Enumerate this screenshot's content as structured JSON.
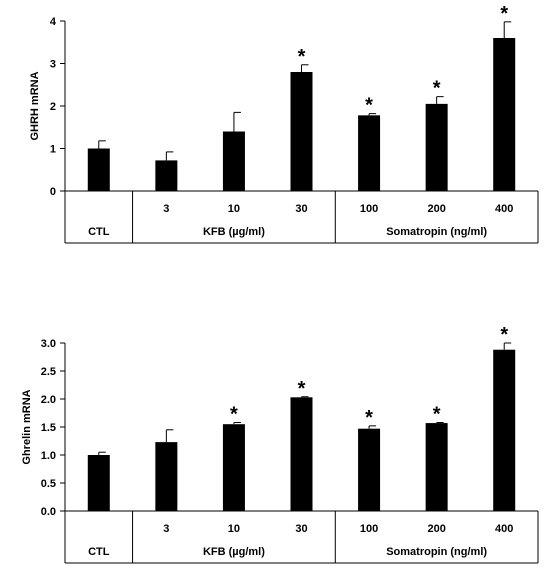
{
  "chart_data": [
    {
      "type": "bar",
      "ylabel": "GHRH mRNA",
      "ylim": [
        0,
        4
      ],
      "yticks": [
        0,
        1,
        2,
        3,
        4
      ],
      "ytick_labels": [
        "0",
        "1",
        "2",
        "3",
        "4"
      ],
      "categories": [
        "",
        "3",
        "10",
        "30",
        "100",
        "200",
        "400"
      ],
      "values": [
        1.0,
        0.72,
        1.4,
        2.8,
        1.78,
        2.05,
        3.6
      ],
      "errors": [
        0.18,
        0.2,
        0.45,
        0.17,
        0.04,
        0.17,
        0.38
      ],
      "significant": [
        false,
        false,
        false,
        true,
        true,
        true,
        true
      ],
      "star": "*",
      "groups": [
        {
          "label": "CTL",
          "span": [
            0,
            0
          ]
        },
        {
          "label": "KFB (µg/ml)",
          "span": [
            1,
            3
          ]
        },
        {
          "label": "Somatropin (ng/ml)",
          "span": [
            4,
            6
          ]
        }
      ],
      "bar_color": "#000000",
      "grid": false
    },
    {
      "type": "bar",
      "ylabel": "Ghrelin mRNA",
      "ylim": [
        0,
        3.0
      ],
      "yticks": [
        0,
        0.5,
        1.0,
        1.5,
        2.0,
        2.5,
        3.0
      ],
      "ytick_labels": [
        "0.0",
        "0.5",
        "1.0",
        "1.5",
        "2.0",
        "2.5",
        "3.0"
      ],
      "categories": [
        "",
        "3",
        "10",
        "30",
        "100",
        "200",
        "400"
      ],
      "values": [
        1.0,
        1.23,
        1.55,
        2.03,
        1.47,
        1.57,
        2.88
      ],
      "errors": [
        0.05,
        0.22,
        0.03,
        0.01,
        0.05,
        0.01,
        0.12
      ],
      "significant": [
        false,
        false,
        true,
        true,
        true,
        true,
        true
      ],
      "star": "*",
      "groups": [
        {
          "label": "CTL",
          "span": [
            0,
            0
          ]
        },
        {
          "label": "KFB (µg/ml)",
          "span": [
            1,
            3
          ]
        },
        {
          "label": "Somatropin (ng/ml)",
          "span": [
            4,
            6
          ]
        }
      ],
      "bar_color": "#000000",
      "grid": false
    }
  ]
}
